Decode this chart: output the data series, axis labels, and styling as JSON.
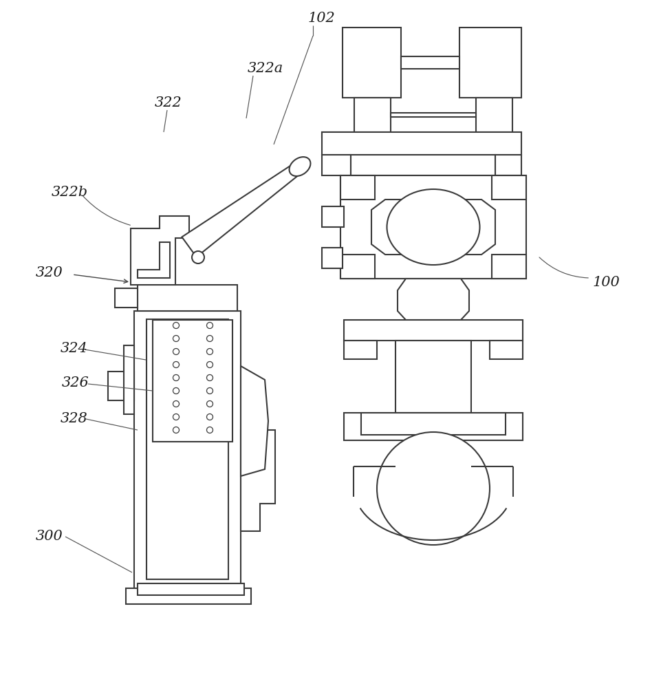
{
  "bg_color": "#ffffff",
  "line_color": "#3a3a3a",
  "line_width": 1.5,
  "figsize": [
    9.78,
    10.0
  ],
  "dpi": 100
}
